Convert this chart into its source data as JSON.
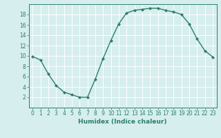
{
  "x": [
    0,
    1,
    2,
    3,
    4,
    5,
    6,
    7,
    8,
    9,
    10,
    11,
    12,
    13,
    14,
    15,
    16,
    17,
    18,
    19,
    20,
    21,
    22,
    23
  ],
  "y": [
    9.9,
    9.2,
    6.5,
    4.3,
    3.0,
    2.5,
    2.0,
    2.0,
    5.5,
    9.5,
    13.0,
    16.2,
    18.3,
    18.8,
    19.0,
    19.2,
    19.2,
    18.8,
    18.5,
    18.0,
    16.2,
    13.3,
    11.0,
    9.8
  ],
  "line_color": "#2d7d6e",
  "marker": "D",
  "marker_size": 2,
  "bg_color": "#d6eeee",
  "grid_color": "#ffffff",
  "xlabel": "Humidex (Indice chaleur)",
  "xlim": [
    -0.5,
    23.5
  ],
  "ylim": [
    0,
    20
  ],
  "yticks": [
    2,
    4,
    6,
    8,
    10,
    12,
    14,
    16,
    18
  ],
  "xticks": [
    0,
    1,
    2,
    3,
    4,
    5,
    6,
    7,
    8,
    9,
    10,
    11,
    12,
    13,
    14,
    15,
    16,
    17,
    18,
    19,
    20,
    21,
    22,
    23
  ],
  "tick_color": "#2d7d6e",
  "spine_color": "#2d7d6e",
  "label_fontsize": 6.5,
  "tick_fontsize": 5.5,
  "linewidth": 1.0
}
